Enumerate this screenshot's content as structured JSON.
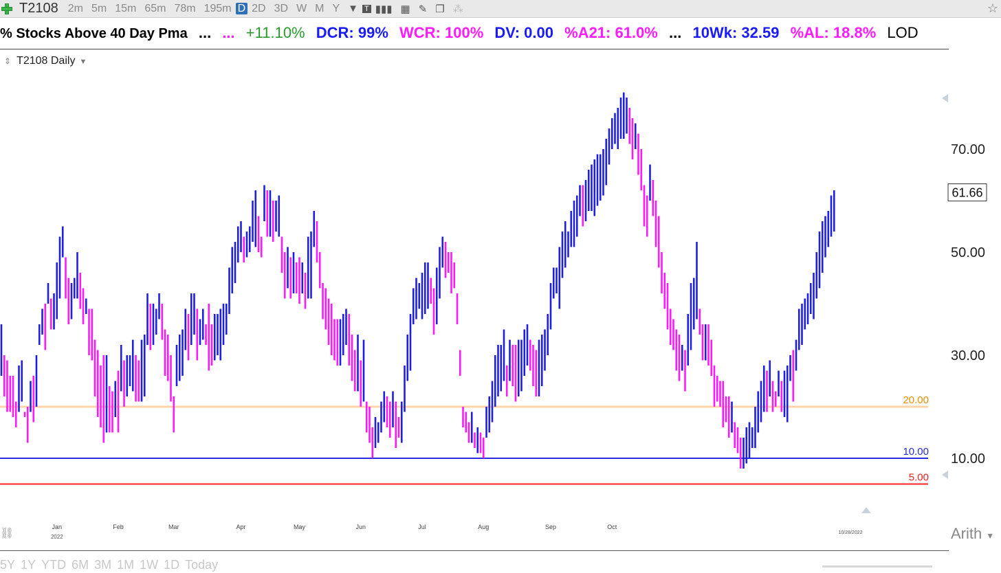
{
  "toolbar": {
    "symbol": "T2108",
    "timeframes": [
      "2m",
      "5m",
      "15m",
      "65m",
      "78m",
      "195m",
      "D",
      "2D",
      "3D",
      "W",
      "M",
      "Y"
    ],
    "active_timeframe": "D"
  },
  "ticker": {
    "name": "% Stocks Above 40 Day Pma",
    "dots1": "...",
    "dots2": "...",
    "change": "+11.10%",
    "dcr": "DCR: 99%",
    "wcr": "WCR: 100%",
    "dv": "DV: 0.00",
    "a21": "%A21: 61.0%",
    "dots3": "...",
    "wk10": "10Wk: 32.59",
    "al": "%AL: 18.8%",
    "lod": "LOD"
  },
  "chart_label": "T2108 Daily",
  "scale_label": "Arith",
  "range_buttons": [
    "5Y",
    "1Y",
    "YTD",
    "6M",
    "3M",
    "1M",
    "1W",
    "1D",
    "Today"
  ],
  "colors": {
    "up": "#1f1fe0",
    "down": "#ff19ff",
    "line20": "#ffd4a8",
    "line10": "#2a2ae0",
    "line5": "#ff2020"
  },
  "chart_data": {
    "type": "ohlc",
    "y_ticks": [
      "70.00",
      "50.00",
      "30.00",
      "10.00"
    ],
    "y_tick_values": [
      70,
      50,
      30,
      10
    ],
    "last_price": "61.66",
    "hlines": [
      {
        "value": 20,
        "label": "20.00",
        "color": "#ffd4a8",
        "label_color": "#f08c00"
      },
      {
        "value": 10,
        "label": "10.00",
        "color": "#2a2ae0",
        "label_color": "#2a2ae0"
      },
      {
        "value": 5,
        "label": "5.00",
        "color": "#ff2020",
        "label_color": "#ff2020"
      }
    ],
    "x_ticks": [
      {
        "label": "Jan",
        "sub": "2022",
        "bar": 19
      },
      {
        "label": "Feb",
        "bar": 40
      },
      {
        "label": "Mar",
        "bar": 59
      },
      {
        "label": "Apr",
        "bar": 82
      },
      {
        "label": "May",
        "bar": 102
      },
      {
        "label": "Jun",
        "bar": 123
      },
      {
        "label": "Jul",
        "bar": 144
      },
      {
        "label": "Aug",
        "bar": 165
      },
      {
        "label": "Sep",
        "bar": 188
      },
      {
        "label": "Oct",
        "bar": 209
      }
    ],
    "x_end_label": "10/28/2022",
    "ylim": [
      0,
      80
    ],
    "bars": [
      [
        36,
        26
      ],
      [
        30,
        22
      ],
      [
        29,
        19
      ],
      [
        26,
        19
      ],
      [
        26,
        18
      ],
      [
        21,
        16
      ],
      [
        28,
        19
      ],
      [
        29,
        21
      ],
      [
        19,
        18
      ],
      [
        20,
        13
      ],
      [
        25,
        19
      ],
      [
        26,
        17
      ],
      [
        30,
        20
      ],
      [
        36,
        32
      ],
      [
        39,
        34
      ],
      [
        40,
        31
      ],
      [
        44,
        40
      ],
      [
        41,
        35
      ],
      [
        42,
        35
      ],
      [
        48,
        37
      ],
      [
        53,
        41
      ],
      [
        55,
        49
      ],
      [
        49,
        41
      ],
      [
        45,
        36
      ],
      [
        44,
        37
      ],
      [
        45,
        41
      ],
      [
        50,
        41
      ],
      [
        46,
        39
      ],
      [
        43,
        36
      ],
      [
        41,
        38
      ],
      [
        39,
        30
      ],
      [
        39,
        29
      ],
      [
        33,
        22
      ],
      [
        31,
        18
      ],
      [
        28,
        16
      ],
      [
        30,
        13
      ],
      [
        30,
        15
      ],
      [
        24,
        15
      ],
      [
        23,
        15
      ],
      [
        25,
        18
      ],
      [
        27,
        15
      ],
      [
        32,
        23
      ],
      [
        29,
        20
      ],
      [
        30,
        22
      ],
      [
        30,
        24
      ],
      [
        33,
        23
      ],
      [
        30,
        21
      ],
      [
        29,
        21
      ],
      [
        33,
        21
      ],
      [
        34,
        22
      ],
      [
        42,
        32
      ],
      [
        40,
        31
      ],
      [
        40,
        32
      ],
      [
        39,
        34
      ],
      [
        42,
        37
      ],
      [
        40,
        33
      ],
      [
        35,
        26
      ],
      [
        34,
        25
      ],
      [
        30,
        21
      ],
      [
        22,
        15
      ],
      [
        32,
        24
      ],
      [
        34,
        25
      ],
      [
        35,
        26
      ],
      [
        39,
        31
      ],
      [
        38,
        29
      ],
      [
        42,
        32
      ],
      [
        42,
        34
      ],
      [
        39,
        29
      ],
      [
        37,
        32
      ],
      [
        39,
        33
      ],
      [
        36,
        32
      ],
      [
        40,
        27
      ],
      [
        36,
        28
      ],
      [
        38,
        29
      ],
      [
        38,
        30
      ],
      [
        39,
        29
      ],
      [
        40,
        32
      ],
      [
        40,
        34
      ],
      [
        47,
        38
      ],
      [
        51,
        42
      ],
      [
        52,
        44
      ],
      [
        55,
        48
      ],
      [
        56,
        50
      ],
      [
        53,
        48
      ],
      [
        54,
        49
      ],
      [
        55,
        50
      ],
      [
        60,
        52
      ],
      [
        62,
        51
      ],
      [
        57,
        50
      ],
      [
        53,
        49
      ],
      [
        63,
        56
      ],
      [
        62,
        53
      ],
      [
        62,
        53
      ],
      [
        60,
        52
      ],
      [
        60,
        54
      ],
      [
        61,
        53
      ],
      [
        53,
        46
      ],
      [
        50,
        41
      ],
      [
        51,
        43
      ],
      [
        49,
        41
      ],
      [
        50,
        42
      ],
      [
        48,
        42
      ],
      [
        49,
        40
      ],
      [
        48,
        42
      ],
      [
        46,
        39
      ],
      [
        53,
        41
      ],
      [
        54,
        41
      ],
      [
        58,
        51
      ],
      [
        56,
        48
      ],
      [
        50,
        43
      ],
      [
        44,
        37
      ],
      [
        43,
        35
      ],
      [
        41,
        32
      ],
      [
        40,
        30
      ],
      [
        37,
        29
      ],
      [
        37,
        28
      ],
      [
        37,
        28
      ],
      [
        38,
        30
      ],
      [
        39,
        32
      ],
      [
        38,
        28
      ],
      [
        34,
        25
      ],
      [
        31,
        23
      ],
      [
        34,
        23
      ],
      [
        29,
        20
      ],
      [
        33,
        21
      ],
      [
        21,
        15
      ],
      [
        20,
        13
      ],
      [
        16,
        10
      ],
      [
        18,
        12
      ],
      [
        17,
        13
      ],
      [
        21,
        15
      ],
      [
        23,
        17
      ],
      [
        22,
        16
      ],
      [
        21,
        14
      ],
      [
        23,
        16
      ],
      [
        21,
        12
      ],
      [
        18,
        14
      ],
      [
        21,
        13
      ],
      [
        28,
        19
      ],
      [
        34,
        25
      ],
      [
        38,
        27
      ],
      [
        43,
        36
      ],
      [
        45,
        37
      ],
      [
        44,
        39
      ],
      [
        46,
        37
      ],
      [
        48,
        38
      ],
      [
        48,
        39
      ],
      [
        45,
        40
      ],
      [
        43,
        34
      ],
      [
        47,
        36
      ],
      [
        51,
        41
      ],
      [
        53,
        47
      ],
      [
        52,
        45
      ],
      [
        50,
        46
      ],
      [
        50,
        42
      ],
      [
        48,
        43
      ],
      [
        42,
        36
      ],
      [
        31,
        26
      ],
      [
        20,
        16
      ],
      [
        19,
        15
      ],
      [
        17,
        13
      ],
      [
        19,
        13
      ],
      [
        15,
        12
      ],
      [
        16,
        11
      ],
      [
        15,
        11
      ],
      [
        14,
        10
      ],
      [
        20,
        14
      ],
      [
        22,
        15
      ],
      [
        25,
        17
      ],
      [
        30,
        20
      ],
      [
        32,
        22
      ],
      [
        32,
        23
      ],
      [
        35,
        25
      ],
      [
        28,
        22
      ],
      [
        33,
        25
      ],
      [
        32,
        24
      ],
      [
        32,
        21
      ],
      [
        33,
        22
      ],
      [
        33,
        23
      ],
      [
        35,
        26
      ],
      [
        36,
        28
      ],
      [
        33,
        27
      ],
      [
        32,
        24
      ],
      [
        31,
        22
      ],
      [
        33,
        22
      ],
      [
        34,
        24
      ],
      [
        35,
        27
      ],
      [
        38,
        30
      ],
      [
        44,
        35
      ],
      [
        47,
        41
      ],
      [
        47,
        42
      ],
      [
        51,
        39
      ],
      [
        54,
        45
      ],
      [
        56,
        47
      ],
      [
        54,
        49
      ],
      [
        58,
        51
      ],
      [
        60,
        51
      ],
      [
        61,
        53
      ],
      [
        63,
        57
      ],
      [
        63,
        55
      ],
      [
        64,
        56
      ],
      [
        66,
        58
      ],
      [
        67,
        58
      ],
      [
        68,
        57
      ],
      [
        69,
        59
      ],
      [
        69,
        60
      ],
      [
        70,
        61
      ],
      [
        72,
        63
      ],
      [
        74,
        67
      ],
      [
        76,
        70
      ],
      [
        77,
        71
      ],
      [
        78,
        70
      ],
      [
        80,
        72
      ],
      [
        81,
        72
      ],
      [
        80,
        73
      ],
      [
        78,
        71
      ],
      [
        76,
        68
      ],
      [
        75,
        70
      ],
      [
        73,
        65
      ],
      [
        70,
        62
      ],
      [
        63,
        55
      ],
      [
        61,
        53
      ],
      [
        67,
        60
      ],
      [
        64,
        57
      ],
      [
        60,
        51
      ],
      [
        57,
        47
      ],
      [
        50,
        42
      ],
      [
        46,
        39
      ],
      [
        44,
        35
      ],
      [
        39,
        32
      ],
      [
        37,
        31
      ],
      [
        35,
        27
      ],
      [
        34,
        25
      ],
      [
        32,
        27
      ],
      [
        31,
        23
      ],
      [
        38,
        28
      ],
      [
        44,
        31
      ],
      [
        45,
        35
      ],
      [
        52,
        37
      ],
      [
        39,
        34
      ],
      [
        36,
        29
      ],
      [
        36,
        29
      ],
      [
        36,
        28
      ],
      [
        33,
        26
      ],
      [
        28,
        20
      ],
      [
        26,
        21
      ],
      [
        25,
        20
      ],
      [
        25,
        16
      ],
      [
        22,
        17
      ],
      [
        22,
        14
      ],
      [
        21,
        15
      ],
      [
        17,
        12
      ],
      [
        16,
        11
      ],
      [
        14,
        8
      ],
      [
        14,
        8
      ],
      [
        16,
        9
      ],
      [
        17,
        10
      ],
      [
        16,
        12
      ],
      [
        20,
        12
      ],
      [
        23,
        15
      ],
      [
        25,
        17
      ],
      [
        28,
        19
      ],
      [
        27,
        19
      ],
      [
        29,
        22
      ],
      [
        25,
        19
      ],
      [
        23,
        20
      ],
      [
        27,
        22
      ],
      [
        25,
        19
      ],
      [
        27,
        18
      ],
      [
        28,
        17
      ],
      [
        30,
        25
      ],
      [
        31,
        21
      ],
      [
        33,
        27
      ],
      [
        39,
        31
      ],
      [
        40,
        32
      ],
      [
        41,
        35
      ],
      [
        42,
        36
      ],
      [
        44,
        38
      ],
      [
        46,
        37
      ],
      [
        50,
        41
      ],
      [
        54,
        43
      ],
      [
        56,
        46
      ],
      [
        57,
        49
      ],
      [
        58,
        51
      ],
      [
        61,
        53
      ],
      [
        62,
        54
      ]
    ]
  }
}
